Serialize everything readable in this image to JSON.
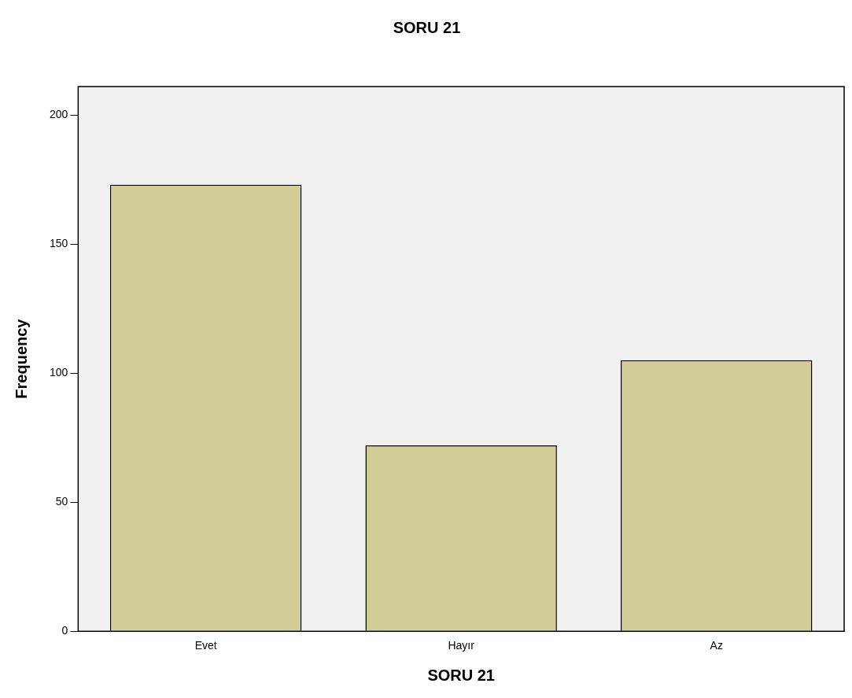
{
  "chart_data": {
    "type": "bar",
    "title": "SORU 21",
    "xlabel": "SORU 21",
    "ylabel": "Frequency",
    "categories": [
      "Evet",
      "Hayır",
      "Az"
    ],
    "values": [
      173,
      72,
      105
    ],
    "color": "#d3ce97",
    "ylim": [
      0,
      211
    ],
    "yticks": [
      0,
      50,
      100,
      150,
      200
    ],
    "grid": false,
    "legend": false
  }
}
